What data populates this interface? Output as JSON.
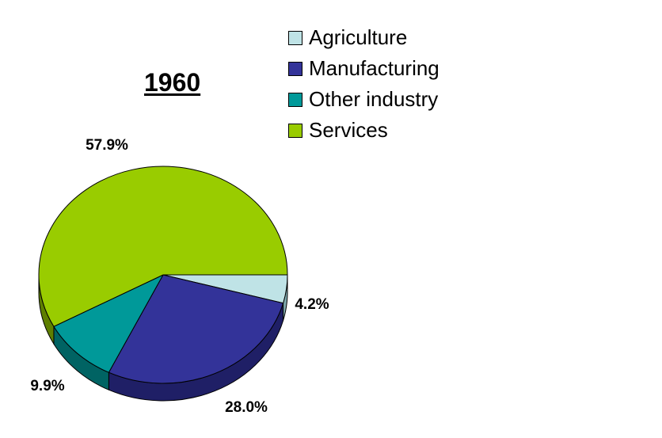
{
  "chart_data": {
    "type": "pie",
    "title": "1960",
    "start_angle_deg": 0,
    "direction": "clockwise",
    "series": [
      {
        "name": "Agriculture",
        "value": 4.2,
        "label": "4.2%",
        "color": "#bfe3e6",
        "side_color": "#7fa9ad"
      },
      {
        "name": "Manufacturing",
        "value": 28.0,
        "label": "28.0%",
        "color": "#333399",
        "side_color": "#1f1f66"
      },
      {
        "name": "Other industry",
        "value": 9.9,
        "label": "9.9%",
        "color": "#009999",
        "side_color": "#006363"
      },
      {
        "name": "Services",
        "value": 57.9,
        "label": "57.9%",
        "color": "#99cc00",
        "side_color": "#5e7f00"
      }
    ],
    "legend_position": "top-right"
  }
}
